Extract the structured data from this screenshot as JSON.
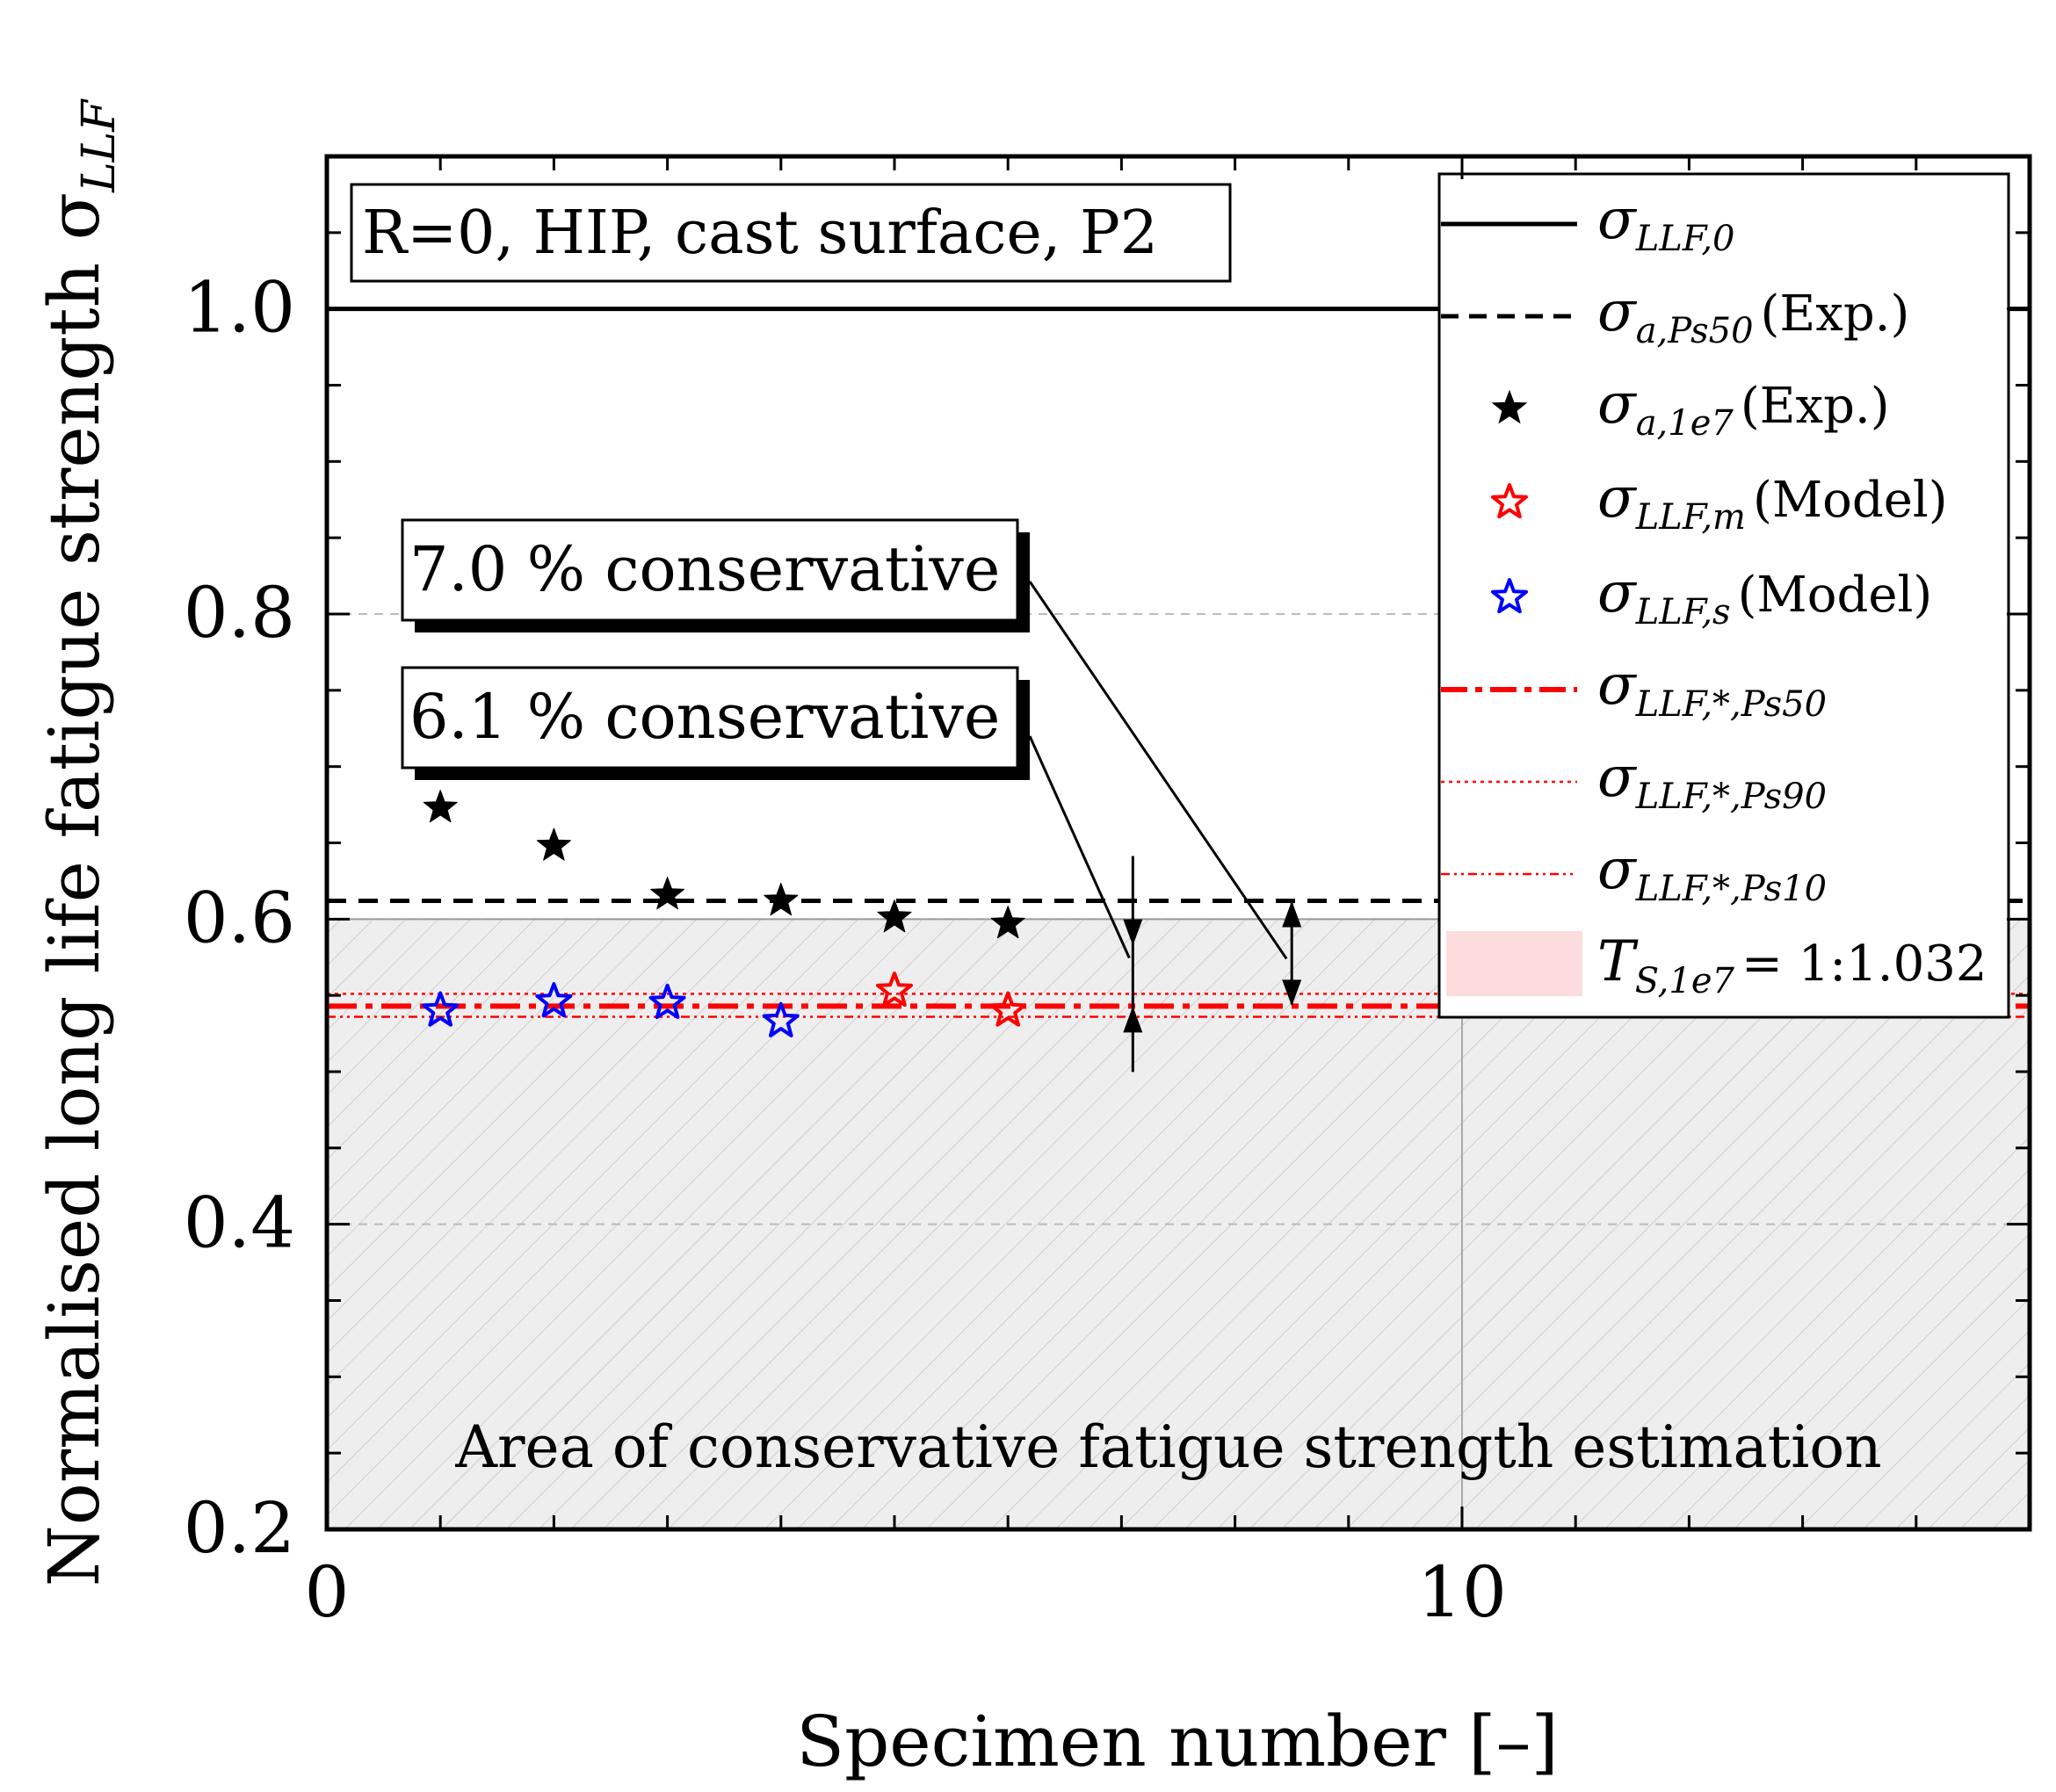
{
  "chart_data": {
    "type": "scatter",
    "title": "",
    "xlabel": "Specimen number [–]",
    "ylabel": "Normalised long life fatigue strength σ",
    "ylabel_sub": "LLF",
    "xlim": [
      0,
      15
    ],
    "ylim": [
      0.2,
      1.1
    ],
    "xticks": [
      0,
      10
    ],
    "xtick_labels": [
      "0",
      "10"
    ],
    "yticks": [
      0.2,
      0.4,
      0.6,
      0.8,
      1.0
    ],
    "ytick_labels": [
      "0.2",
      "0.4",
      "0.6",
      "0.8",
      "1.0"
    ],
    "condition_label": "R=0, HIP, cast surface, P2",
    "area_label": "Area of conservative fatigue strength estimation",
    "conservative_area_top": 0.6,
    "hlines": {
      "llf0": 1.0,
      "ps50_exp": 0.612,
      "model_ps50": 0.543,
      "model_ps90": 0.551,
      "model_ps10": 0.536
    },
    "series": [
      {
        "name": "σa,1e7 (Exp.)",
        "marker": "filled-star",
        "color": "#000000",
        "x": [
          1,
          2,
          3,
          4,
          5,
          6
        ],
        "y": [
          0.673,
          0.648,
          0.616,
          0.612,
          0.601,
          0.597
        ]
      },
      {
        "name": "σLLF,m (Model)",
        "marker": "open-star",
        "color": "#ff0000",
        "x": [
          5,
          6
        ],
        "y": [
          0.553,
          0.54
        ]
      },
      {
        "name": "σLLF,s (Model)",
        "marker": "open-star",
        "color": "#0000ff",
        "x": [
          1,
          2,
          3,
          4
        ],
        "y": [
          0.54,
          0.546,
          0.545,
          0.533
        ]
      }
    ],
    "callouts": [
      {
        "text": "7.0 % conservative",
        "arrow_x": 8.5,
        "y_from": 0.612,
        "y_to": 0.543
      },
      {
        "text": "6.1 % conservative",
        "arrow_x": 7.1,
        "y_from": 0.578,
        "y_to": 0.543
      }
    ],
    "legend": {
      "position": "top-right",
      "entries": [
        {
          "label": "σ",
          "sub": "LLF,0",
          "suffix": ""
        },
        {
          "label": "σ",
          "sub": "a,Ps50",
          "suffix": "(Exp.)"
        },
        {
          "label": "σ",
          "sub": "a,1e7",
          "suffix": "(Exp.)"
        },
        {
          "label": "σ",
          "sub": "LLF,m",
          "suffix": "(Model)"
        },
        {
          "label": "σ",
          "sub": "LLF,s",
          "suffix": "(Model)"
        },
        {
          "label": "σ",
          "sub": "LLF,*,Ps50",
          "suffix": ""
        },
        {
          "label": "σ",
          "sub": "LLF,*,Ps90",
          "suffix": ""
        },
        {
          "label": "σ",
          "sub": "LLF,*,Ps10",
          "suffix": ""
        },
        {
          "label": "T",
          "sub": "S,1e7",
          "suffix": "= 1:1.032"
        }
      ]
    }
  }
}
